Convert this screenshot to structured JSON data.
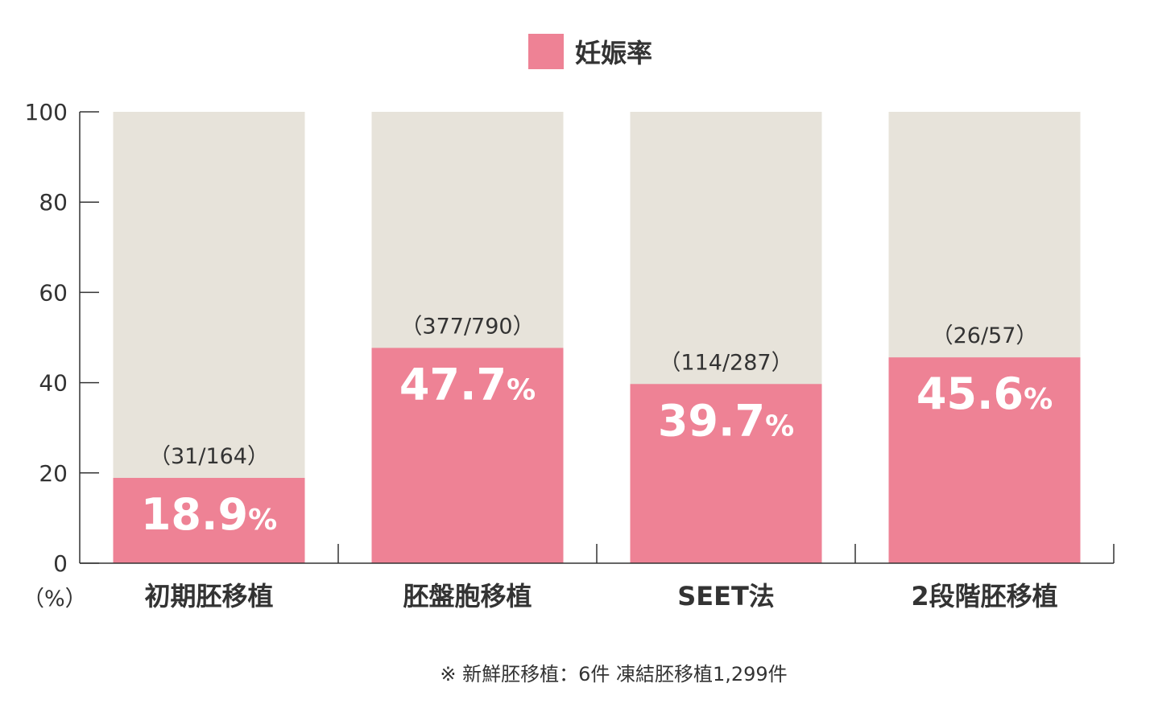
{
  "legend": {
    "label": "妊娠率",
    "color": "#ee8295"
  },
  "unit_label": "（%）",
  "footnote": "※ 新鮮胚移植：6件 凍結胚移植1,299件",
  "colors": {
    "rate": "#ee8295",
    "background": "#e7e3da",
    "axis": "#333333",
    "value_text": "#ffffff"
  },
  "chart_data": {
    "type": "bar",
    "categories": [
      "初期胚移植",
      "胚盤胞移植",
      "SEET法",
      "2段階胚移植"
    ],
    "series": [
      {
        "name": "妊娠率",
        "values": [
          18.9,
          47.7,
          39.7,
          45.6
        ]
      }
    ],
    "value_labels": [
      "18.9",
      "47.7",
      "39.7",
      "45.6"
    ],
    "value_suffix": "%",
    "counts": [
      "（31/164）",
      "（377/790）",
      "（114/287）",
      "（26/57）"
    ],
    "yticks": [
      "0",
      "20",
      "40",
      "60",
      "80",
      "100"
    ],
    "ylim": [
      0,
      100
    ],
    "ylabel": "",
    "xlabel": "",
    "legend_position": "top-center"
  }
}
